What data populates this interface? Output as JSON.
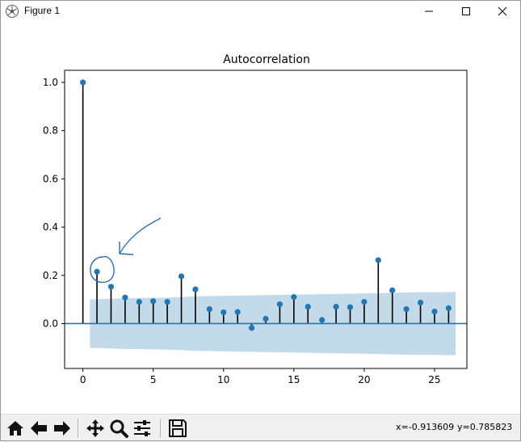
{
  "window": {
    "title": "Figure 1",
    "minimize_icon": "minimize-icon",
    "maximize_icon": "maximize-icon",
    "close_icon": "close-icon"
  },
  "toolbar": {
    "buttons": [
      "home-icon",
      "back-arrow-icon",
      "forward-arrow-icon",
      "pan-icon",
      "zoom-icon",
      "subplots-icon",
      "save-icon"
    ],
    "coords_x": "x=-0.913609",
    "coords_y": "y=0.785823"
  },
  "colors": {
    "marker": "#1f77b4",
    "confidence_band": "#b9d3e6",
    "stem": "#000000",
    "baseline": "#1f77b4",
    "annotation": "#2a6fb7"
  },
  "chart_data": {
    "type": "scatter",
    "title": "Autocorrelation",
    "xlabel": "",
    "ylabel": "",
    "x": [
      0,
      1,
      2,
      3,
      4,
      5,
      6,
      7,
      8,
      9,
      10,
      11,
      12,
      13,
      14,
      15,
      16,
      17,
      18,
      19,
      20,
      21,
      22,
      23,
      24,
      25,
      26
    ],
    "y": [
      1.0,
      0.215,
      0.153,
      0.108,
      0.09,
      0.093,
      0.09,
      0.196,
      0.142,
      0.06,
      0.047,
      0.048,
      -0.018,
      0.02,
      0.08,
      0.11,
      0.07,
      0.015,
      0.07,
      0.068,
      0.09,
      0.263,
      0.138,
      0.06,
      0.087,
      0.05,
      0.064
    ],
    "confidence_band": [
      0.101,
      0.101,
      0.103,
      0.105,
      0.106,
      0.107,
      0.108,
      0.11,
      0.113,
      0.114,
      0.115,
      0.116,
      0.117,
      0.118,
      0.119,
      0.12,
      0.121,
      0.122,
      0.123,
      0.124,
      0.125,
      0.126,
      0.128,
      0.129,
      0.13,
      0.13,
      0.131
    ],
    "xlim": [
      -1.3,
      27.3
    ],
    "ylim": [
      -0.186,
      1.05
    ],
    "xticks": [
      0,
      5,
      10,
      15,
      20,
      25
    ],
    "xtick_labels": [
      "0",
      "5",
      "10",
      "15",
      "20",
      "25"
    ],
    "yticks": [
      0.0,
      0.2,
      0.4,
      0.6,
      0.8,
      1.0
    ],
    "ytick_labels": [
      "0.0",
      "0.2",
      "0.4",
      "0.6",
      "0.8",
      "1.0"
    ],
    "grid": false,
    "legend": "none"
  }
}
